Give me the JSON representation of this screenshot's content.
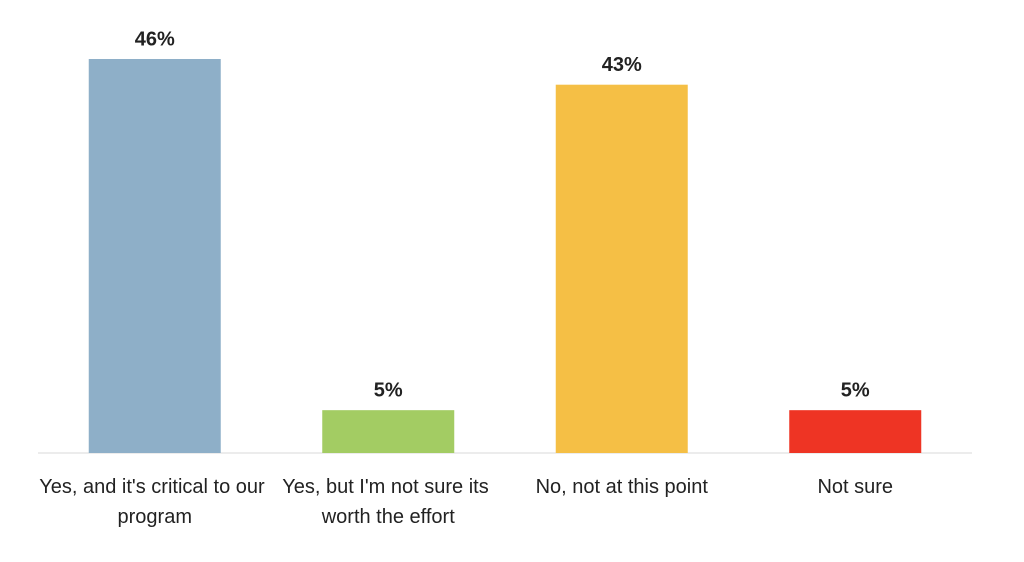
{
  "chart_data": {
    "type": "bar",
    "categories": [
      "Yes, and it's critical to our program",
      "Yes, but I'm not sure its worth the effort",
      "No, not at this point",
      "Not sure"
    ],
    "values": [
      46,
      5,
      43,
      5
    ],
    "value_labels": [
      "46%",
      "5%",
      "43%",
      "5%"
    ],
    "colors": [
      "#8eafc8",
      "#a3cc63",
      "#f5bf45",
      "#ee3424"
    ]
  }
}
